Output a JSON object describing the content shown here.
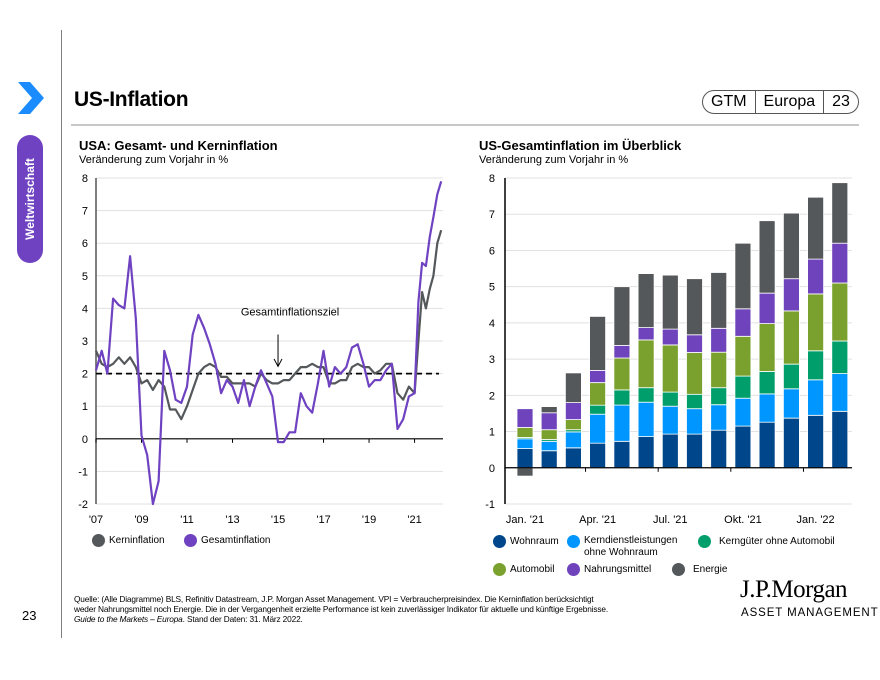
{
  "sidebar": {
    "tab_label": "Weltwirtschaft",
    "page_number": "23"
  },
  "header": {
    "title": "US-Inflation",
    "badge": [
      "GTM",
      "Europa",
      "23"
    ]
  },
  "colors": {
    "accent": "#1a8cff",
    "purple": "#6f42c1",
    "kern": "#54585a",
    "wohnraum": "#00468b",
    "kerndienst": "#0096ff",
    "kernguter": "#009e6a",
    "automobil": "#7aa12e",
    "nahrungsmittel": "#6e43bb",
    "energie": "#54585a"
  },
  "footer": {
    "source_lines": [
      "Quelle: (Alle Diagramme) BLS, Refinitiv Datastream, J.P. Morgan Asset Management. VPI = Verbraucherpreisindex. Die Kerninflation berücksichtigt",
      "weder Nahrungsmittel noch Energie. Die in der Vergangenheit erzielte Performance ist kein zuverlässiger Indikator für aktuelle und künftige Ergebnisse."
    ],
    "source_italic": "Guide to the Markets – Europa",
    "source_tail": ". Stand der Daten: 31. März 2022.",
    "logo_main": "J.P.Morgan",
    "logo_sub": "ASSET MANAGEMENT"
  },
  "chart_data": [
    {
      "type": "line",
      "title": "USA: Gesamt- und Kerninflation",
      "subtitle": "Veränderung zum Vorjahr in %",
      "xlabel": "",
      "ylabel": "",
      "ylim": [
        -2,
        8
      ],
      "yticks": [
        "8",
        "7",
        "6",
        "5",
        "4",
        "3",
        "2",
        "1",
        "0",
        "-1",
        "-2"
      ],
      "xticks": [
        "'07",
        "'09",
        "'11",
        "'13",
        "'15",
        "'17",
        "'19",
        "'21"
      ],
      "xrange": [
        2007.0,
        2022.25
      ],
      "grid": true,
      "legend_position": "bottom-left",
      "annotation": {
        "text": "Gesamtinflationsziel",
        "x": 2015.0,
        "y": 2.0
      },
      "target_line": 2.0,
      "series": [
        {
          "name": "Kerninflation",
          "x": [
            2007.0,
            2007.25,
            2007.5,
            2007.75,
            2008.0,
            2008.25,
            2008.5,
            2008.75,
            2009.0,
            2009.25,
            2009.5,
            2009.75,
            2010.0,
            2010.25,
            2010.5,
            2010.75,
            2011.0,
            2011.25,
            2011.5,
            2011.75,
            2012.0,
            2012.25,
            2012.5,
            2012.75,
            2013.0,
            2013.25,
            2013.5,
            2013.75,
            2014.0,
            2014.25,
            2014.5,
            2014.75,
            2015.0,
            2015.25,
            2015.5,
            2015.75,
            2016.0,
            2016.25,
            2016.5,
            2016.75,
            2017.0,
            2017.25,
            2017.5,
            2017.75,
            2018.0,
            2018.25,
            2018.5,
            2018.75,
            2019.0,
            2019.25,
            2019.5,
            2019.75,
            2020.0,
            2020.25,
            2020.5,
            2020.75,
            2021.0,
            2021.17,
            2021.33,
            2021.5,
            2021.67,
            2021.83,
            2022.0,
            2022.17
          ],
          "y": [
            2.7,
            2.3,
            2.2,
            2.3,
            2.5,
            2.3,
            2.5,
            2.2,
            1.7,
            1.8,
            1.5,
            1.8,
            1.6,
            0.9,
            0.9,
            0.6,
            1.0,
            1.5,
            2.0,
            2.2,
            2.3,
            2.2,
            1.9,
            1.9,
            1.7,
            1.7,
            1.7,
            1.7,
            1.6,
            2.0,
            1.8,
            1.7,
            1.7,
            1.8,
            1.8,
            2.0,
            2.2,
            2.2,
            2.3,
            2.2,
            2.2,
            1.7,
            1.7,
            1.8,
            1.8,
            2.2,
            2.3,
            2.2,
            2.2,
            2.0,
            2.1,
            2.3,
            2.3,
            1.4,
            1.2,
            1.6,
            1.4,
            3.0,
            4.5,
            4.0,
            4.6,
            5.0,
            6.0,
            6.4
          ]
        },
        {
          "name": "Gesamtinflation",
          "x": [
            2007.0,
            2007.25,
            2007.5,
            2007.75,
            2008.0,
            2008.25,
            2008.5,
            2008.75,
            2009.0,
            2009.25,
            2009.5,
            2009.75,
            2010.0,
            2010.25,
            2010.5,
            2010.75,
            2011.0,
            2011.25,
            2011.5,
            2011.75,
            2012.0,
            2012.25,
            2012.5,
            2012.75,
            2013.0,
            2013.25,
            2013.5,
            2013.75,
            2014.0,
            2014.25,
            2014.5,
            2014.75,
            2015.0,
            2015.25,
            2015.5,
            2015.75,
            2016.0,
            2016.25,
            2016.5,
            2016.75,
            2017.0,
            2017.25,
            2017.5,
            2017.75,
            2018.0,
            2018.25,
            2018.5,
            2018.75,
            2019.0,
            2019.25,
            2019.5,
            2019.75,
            2020.0,
            2020.25,
            2020.5,
            2020.75,
            2021.0,
            2021.17,
            2021.33,
            2021.5,
            2021.67,
            2021.83,
            2022.0,
            2022.17
          ],
          "y": [
            2.1,
            2.7,
            2.0,
            4.3,
            4.1,
            4.0,
            5.6,
            3.7,
            0.1,
            -0.5,
            -2.0,
            -1.3,
            2.7,
            2.1,
            1.2,
            1.1,
            1.6,
            3.2,
            3.8,
            3.4,
            2.9,
            2.3,
            1.4,
            1.8,
            1.6,
            1.1,
            1.8,
            1.0,
            1.6,
            2.1,
            1.7,
            1.3,
            -0.1,
            -0.1,
            0.2,
            0.2,
            1.4,
            1.0,
            0.8,
            1.7,
            2.7,
            1.6,
            2.2,
            2.0,
            2.2,
            2.8,
            2.9,
            2.3,
            1.6,
            1.8,
            1.8,
            2.1,
            2.3,
            0.3,
            0.6,
            1.3,
            1.4,
            4.2,
            5.4,
            5.3,
            6.2,
            6.8,
            7.5,
            7.9
          ]
        }
      ]
    },
    {
      "type": "bar",
      "stacked": true,
      "title": "US-Gesamtinflation im Überblick",
      "subtitle": "Veränderung zum Vorjahr in %",
      "xlabel": "",
      "ylabel": "",
      "ylim": [
        -1,
        8
      ],
      "yticks": [
        "8",
        "7",
        "6",
        "5",
        "4",
        "3",
        "2",
        "1",
        "0",
        "-1"
      ],
      "xtick_labels": [
        "Jan. '21",
        "Apr. '21",
        "Jul. '21",
        "Okt. '21",
        "Jan. '22"
      ],
      "grid": true,
      "legend_position": "bottom",
      "categories": [
        "Jan 21",
        "Feb 21",
        "Mär 21",
        "Apr 21",
        "Mai 21",
        "Jun 21",
        "Jul 21",
        "Aug 21",
        "Sep 21",
        "Okt 21",
        "Nov 21",
        "Dez 21",
        "Jan 22",
        "Feb 22"
      ],
      "series": [
        {
          "name": "Wohnraum",
          "values": [
            0.53,
            0.47,
            0.55,
            0.68,
            0.73,
            0.86,
            0.93,
            0.93,
            1.04,
            1.15,
            1.26,
            1.37,
            1.45,
            1.56
          ]
        },
        {
          "name": "Kerndienstleistungen ohne Wohnraum",
          "values": [
            0.27,
            0.26,
            0.44,
            0.8,
            1.0,
            0.95,
            0.77,
            0.7,
            0.7,
            0.77,
            0.78,
            0.81,
            0.98,
            1.04
          ]
        },
        {
          "name": "Kerngüter ohne Automobil",
          "values": [
            0.04,
            0.05,
            0.06,
            0.25,
            0.42,
            0.4,
            0.39,
            0.4,
            0.47,
            0.61,
            0.62,
            0.68,
            0.8,
            0.9
          ]
        },
        {
          "name": "Automobil",
          "values": [
            0.27,
            0.27,
            0.28,
            0.62,
            0.88,
            1.32,
            1.3,
            1.15,
            0.98,
            1.1,
            1.32,
            1.47,
            1.57,
            1.6
          ]
        },
        {
          "name": "Nahrungsmittel",
          "values": [
            0.52,
            0.47,
            0.47,
            0.34,
            0.35,
            0.34,
            0.44,
            0.49,
            0.66,
            0.76,
            0.84,
            0.89,
            0.96,
            1.1
          ]
        },
        {
          "name": "Energie",
          "values": [
            -0.23,
            0.17,
            0.82,
            1.49,
            1.62,
            1.49,
            1.49,
            1.55,
            1.54,
            1.81,
            2.0,
            1.81,
            1.71,
            1.67
          ]
        }
      ]
    }
  ]
}
